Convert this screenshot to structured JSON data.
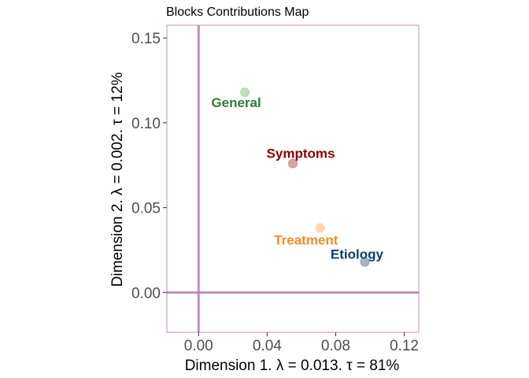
{
  "chart_data": {
    "type": "scatter",
    "title": "Blocks Contributions Map",
    "xlabel": "Dimension 1.   λ = 0.013.  τ = 81%",
    "ylabel": "Dimension 2.   λ = 0.002.  τ = 12%",
    "xlim": [
      -0.0185,
      0.1285
    ],
    "ylim": [
      -0.0235,
      0.1575
    ],
    "x_ticks": [
      0.0,
      0.04,
      0.08,
      0.12
    ],
    "x_tick_labels": [
      "0.00",
      "0.04",
      "0.08",
      "0.12"
    ],
    "y_ticks": [
      0.0,
      0.05,
      0.1,
      0.15
    ],
    "y_tick_labels": [
      "0.00",
      "0.05",
      "0.10",
      "0.15"
    ],
    "grid": false,
    "reference_lines": {
      "x": 0,
      "y": 0,
      "color": "#B07DB0"
    },
    "frame_color": "#C38DC3",
    "points": [
      {
        "label": "General",
        "x": 0.027,
        "y": 0.118,
        "color": "#2E7D32",
        "point_color": "#A5D6A7"
      },
      {
        "label": "Symptoms",
        "x": 0.055,
        "y": 0.076,
        "color": "#8B0000",
        "point_color": "#C08A8A"
      },
      {
        "label": "Treatment",
        "x": 0.071,
        "y": 0.038,
        "color": "#F58A1F",
        "point_color": "#FFCC99"
      },
      {
        "label": "Etiology",
        "x": 0.097,
        "y": 0.018,
        "color": "#0D3D6B",
        "point_color": "#8E9BAB"
      }
    ]
  }
}
